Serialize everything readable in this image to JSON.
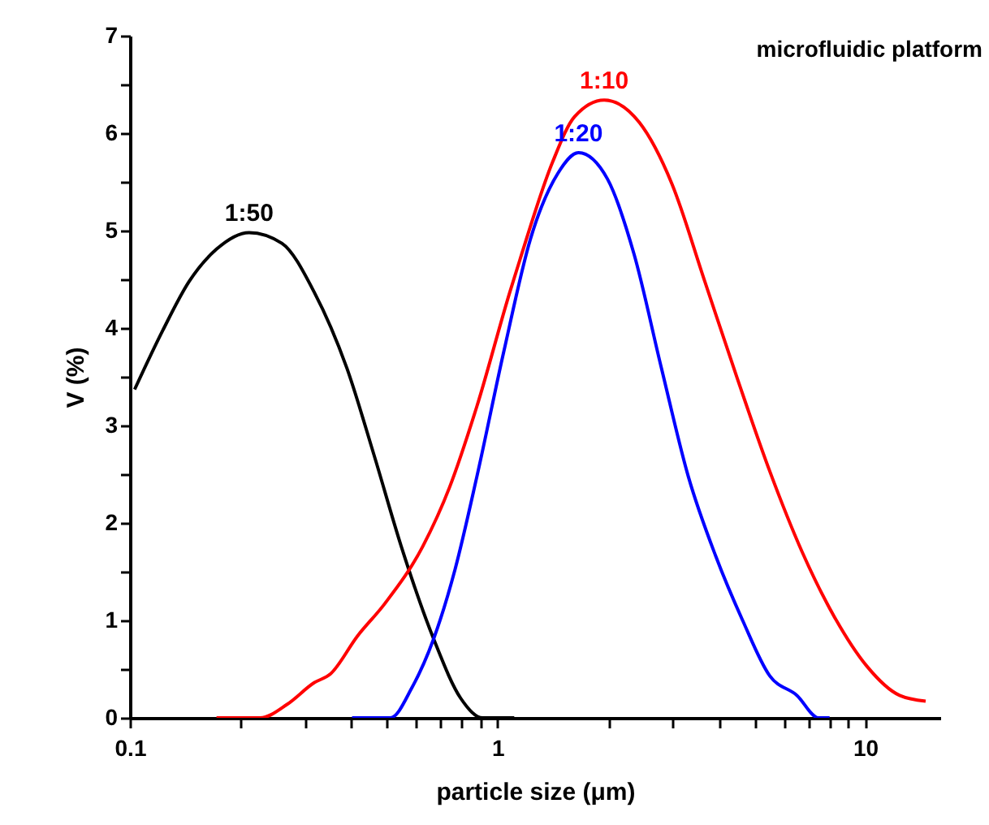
{
  "chart_data": {
    "type": "line",
    "xlabel": "particle size (μm)",
    "ylabel": "V (%)",
    "log": "x",
    "xlim": [
      0.1,
      16
    ],
    "ylim": [
      0,
      7
    ],
    "xticks": [
      0.1,
      {
        "value": 0.2,
        "label": null
      },
      {
        "value": 0.3,
        "label": null
      },
      {
        "value": 0.4,
        "label": null
      },
      {
        "value": 0.5,
        "label": null
      },
      {
        "value": 0.6,
        "label": null
      },
      {
        "value": 0.7,
        "label": null
      },
      {
        "value": 0.8,
        "label": null
      },
      {
        "value": 0.9,
        "label": null
      },
      1,
      {
        "value": 2,
        "label": null
      },
      {
        "value": 3,
        "label": null
      },
      {
        "value": 4,
        "label": null
      },
      {
        "value": 5,
        "label": null
      },
      {
        "value": 6,
        "label": null
      },
      {
        "value": 7,
        "label": null
      },
      {
        "value": 8,
        "label": null
      },
      {
        "value": 9,
        "label": null
      },
      10
    ],
    "yticks": [
      0,
      {
        "value": 0.5,
        "label": null
      },
      1,
      {
        "value": 1.5,
        "label": null
      },
      2,
      {
        "value": 2.5,
        "label": null
      },
      3,
      {
        "value": 3.5,
        "label": null
      },
      4,
      {
        "value": 4.5,
        "label": null
      },
      5,
      {
        "value": 5.5,
        "label": null
      },
      6,
      {
        "value": 6.5,
        "label": null
      },
      7
    ],
    "line_style": "solid",
    "marker": "none",
    "annotations": [
      "microfluidic platform"
    ],
    "series": [
      {
        "name": "1:50",
        "color": "#000000",
        "x": [
          0.103,
          0.123,
          0.145,
          0.172,
          0.211,
          0.259,
          0.317,
          0.389,
          0.461,
          0.547,
          0.67,
          0.794,
          0.91,
          1.11
        ],
        "values": [
          3.37,
          3.98,
          4.48,
          4.81,
          4.98,
          4.87,
          4.37,
          3.59,
          2.7,
          1.76,
          0.81,
          0.2,
          0,
          0
        ]
      },
      {
        "name": "1:10",
        "color": "#ff0000",
        "x": [
          0.172,
          0.226,
          0.268,
          0.317,
          0.351,
          0.416,
          0.493,
          0.626,
          0.741,
          0.879,
          1.08,
          1.15,
          1.41,
          1.62,
          1.95,
          2.43,
          2.98,
          3.66,
          4.49,
          5.5,
          6.74,
          8.26,
          10.1,
          12.4,
          14.6
        ],
        "values": [
          0,
          0,
          0.14,
          0.36,
          0.45,
          0.84,
          1.17,
          1.76,
          2.37,
          3.2,
          4.37,
          4.7,
          5.7,
          6.17,
          6.34,
          6.11,
          5.48,
          4.48,
          3.48,
          2.53,
          1.7,
          1.03,
          0.53,
          0.23,
          0.17
        ]
      },
      {
        "name": "1:20",
        "color": "#0000ff",
        "x": [
          0.402,
          0.511,
          0.585,
          0.67,
          0.767,
          0.879,
          1.04,
          1.23,
          1.46,
          1.66,
          1.99,
          2.35,
          2.79,
          3.3,
          3.92,
          4.64,
          5.5,
          6.52,
          7.47,
          8.0
        ],
        "values": [
          0,
          0,
          0.31,
          0.81,
          1.53,
          2.48,
          3.76,
          4.92,
          5.59,
          5.8,
          5.53,
          4.76,
          3.59,
          2.48,
          1.66,
          1,
          0.43,
          0.23,
          0,
          0
        ]
      }
    ]
  }
}
